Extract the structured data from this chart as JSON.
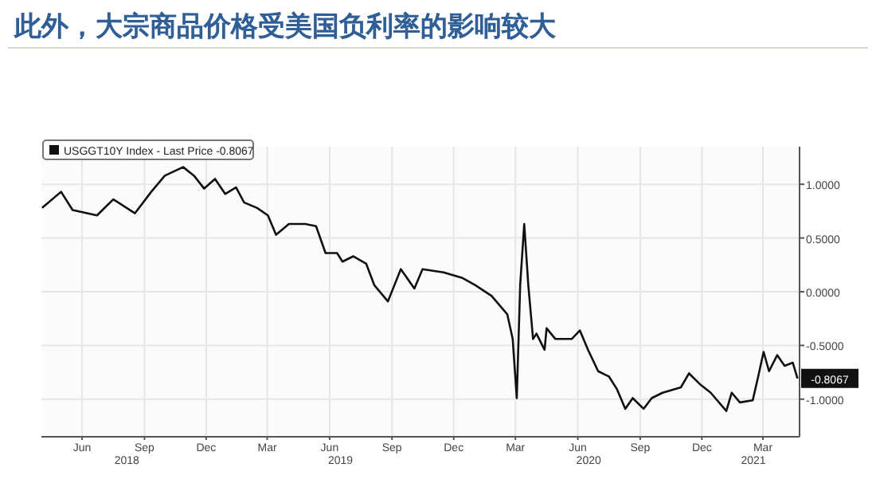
{
  "chart_data": {
    "type": "line",
    "title": "此外，大宗商品价格受美国负利率的影响较大",
    "x": [
      "2018-04-17",
      "2018-05-15",
      "2018-06-01",
      "2018-07-07",
      "2018-07-31",
      "2018-09-01",
      "2018-09-25",
      "2018-10-15",
      "2018-11-11",
      "2018-11-27",
      "2018-12-12",
      "2018-12-28",
      "2019-01-12",
      "2019-01-28",
      "2019-02-09",
      "2019-02-28",
      "2019-03-16",
      "2019-03-28",
      "2019-04-16",
      "2019-05-10",
      "2019-05-26",
      "2019-06-09",
      "2019-06-26",
      "2019-07-04",
      "2019-07-20",
      "2019-08-08",
      "2019-08-20",
      "2019-09-09",
      "2019-09-28",
      "2019-10-18",
      "2019-10-30",
      "2019-11-30",
      "2019-12-27",
      "2020-01-16",
      "2020-02-09",
      "2020-03-03",
      "2020-03-11",
      "2020-03-17",
      "2020-03-22",
      "2020-03-28",
      "2020-04-03",
      "2020-04-10",
      "2020-04-15",
      "2020-04-27",
      "2020-04-30",
      "2020-05-13",
      "2020-06-06",
      "2020-06-18",
      "2020-06-30",
      "2020-07-15",
      "2020-07-31",
      "2020-08-12",
      "2020-08-24",
      "2020-09-04",
      "2020-09-20",
      "2020-10-02",
      "2020-10-18",
      "2020-11-03",
      "2020-11-14",
      "2020-11-26",
      "2020-12-12",
      "2020-12-28",
      "2021-01-20",
      "2021-01-28",
      "2021-02-09",
      "2021-02-28",
      "2021-03-08",
      "2021-03-16",
      "2021-03-24",
      "2021-04-05",
      "2021-04-16",
      "2021-04-28",
      "2021-05-05"
    ],
    "series": [
      {
        "name": "USGGT10Y Index - Last Price -0.8067",
        "color": "#111111",
        "values": [
          0.78,
          0.93,
          0.76,
          0.71,
          0.86,
          0.73,
          0.93,
          1.08,
          1.16,
          1.08,
          0.96,
          1.05,
          0.91,
          0.97,
          0.83,
          0.78,
          0.71,
          0.53,
          0.63,
          0.63,
          0.61,
          0.36,
          0.36,
          0.28,
          0.33,
          0.26,
          0.06,
          -0.09,
          0.21,
          0.03,
          0.21,
          0.18,
          0.13,
          0.06,
          -0.04,
          -0.21,
          -0.44,
          -0.99,
          0.06,
          0.63,
          0.06,
          -0.44,
          -0.39,
          -0.54,
          -0.34,
          -0.44,
          -0.44,
          -0.36,
          -0.54,
          -0.74,
          -0.79,
          -0.91,
          -1.09,
          -0.99,
          -1.09,
          -0.99,
          -0.94,
          -0.91,
          -0.89,
          -0.76,
          -0.86,
          -0.94,
          -1.11,
          -0.94,
          -1.03,
          -1.01,
          -0.79,
          -0.56,
          -0.74,
          -0.59,
          -0.69,
          -0.66,
          -0.8067
        ],
        "value_labels": [
          null,
          null,
          null,
          null,
          null,
          null,
          null,
          null,
          null,
          null,
          null,
          null,
          null,
          null,
          null,
          null,
          null,
          null,
          null,
          null,
          null,
          null,
          null,
          null,
          null,
          null,
          null,
          null,
          null,
          null,
          null,
          null,
          null,
          null,
          null,
          null,
          null,
          null,
          null,
          null,
          null,
          null,
          null,
          null,
          null,
          null,
          null,
          null,
          null,
          null,
          null,
          null,
          null,
          null,
          null,
          null,
          null,
          null,
          null,
          null,
          null,
          null,
          null,
          null,
          null,
          null,
          null,
          null,
          null,
          null,
          null,
          null,
          "-0.8067"
        ]
      }
    ],
    "xlim": [
      "2018-04-16",
      "2021-05-08"
    ],
    "xticks": [
      {
        "value": "2018-06-15",
        "label": "Jun"
      },
      {
        "value": "2018-09-15",
        "label": "Sep"
      },
      {
        "value": "2018-12-15",
        "label": "Dec"
      },
      {
        "value": "2019-03-15",
        "label": "Mar"
      },
      {
        "value": "2019-06-15",
        "label": "Jun"
      },
      {
        "value": "2019-09-15",
        "label": "Sep"
      },
      {
        "value": "2019-12-15",
        "label": "Dec"
      },
      {
        "value": "2020-03-15",
        "label": "Mar"
      },
      {
        "value": "2020-06-15",
        "label": "Jun"
      },
      {
        "value": "2020-09-15",
        "label": "Sep"
      },
      {
        "value": "2020-12-15",
        "label": "Dec"
      },
      {
        "value": "2021-03-15",
        "label": "Mar"
      }
    ],
    "x2lim": [
      "2018-04-16",
      "2021-05-08"
    ],
    "x2ticks": [
      {
        "value": "2018-08-20",
        "label": "2018"
      },
      {
        "value": "2019-07-01",
        "label": "2019"
      },
      {
        "value": "2020-07-01",
        "label": "2020"
      },
      {
        "value": "2021-03-01",
        "label": "2021"
      }
    ],
    "ylim": [
      -1.35,
      1.35
    ],
    "yticks": [
      {
        "value": 1,
        "label": "1.0000"
      },
      {
        "value": 0.5,
        "label": "0.5000"
      },
      {
        "value": 0,
        "label": "0.0000"
      },
      {
        "value": -0.5,
        "label": "-0.5000"
      },
      {
        "value": -1,
        "label": "-1.0000"
      }
    ],
    "grid": true,
    "legend": "top left"
  }
}
